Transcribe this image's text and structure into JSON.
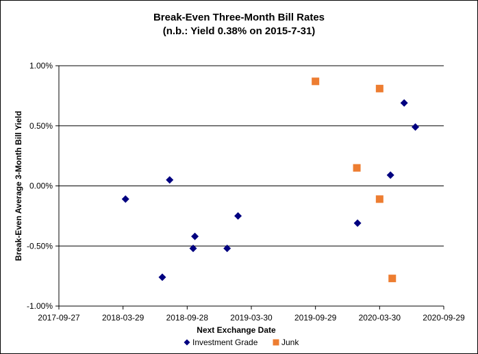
{
  "chart_data": {
    "type": "scatter",
    "title": "Break-Even Three-Month Bill Rates",
    "subtitle": "(n.b.: Yield 0.38% on 2015-7-31)",
    "xlabel": "Next Exchange Date",
    "ylabel": "Break-Even Average 3-Month  Bill Yield",
    "x_ticks": [
      "2017-09-27",
      "2018-03-29",
      "2018-09-28",
      "2019-03-30",
      "2019-09-29",
      "2020-03-30",
      "2020-09-29"
    ],
    "xlim": [
      "2017-09-27",
      "2020-09-29"
    ],
    "y_ticks": [
      "1.00%",
      "0.50%",
      "0.00%",
      "-0.50%",
      "-1.00%"
    ],
    "ylim": [
      -1.0,
      1.0
    ],
    "y_unit": "%",
    "grid": "horizontal major gridlines",
    "legend_position": "bottom",
    "series": [
      {
        "name": "Investment Grade",
        "marker": "diamond",
        "color": "#000080",
        "points": [
          {
            "x": "2018-04-05",
            "y": -0.11
          },
          {
            "x": "2018-07-19",
            "y": -0.76
          },
          {
            "x": "2018-08-09",
            "y": 0.05
          },
          {
            "x": "2018-10-15",
            "y": -0.52
          },
          {
            "x": "2018-10-20",
            "y": -0.42
          },
          {
            "x": "2019-01-20",
            "y": -0.52
          },
          {
            "x": "2019-02-20",
            "y": -0.25
          },
          {
            "x": "2020-01-27",
            "y": -0.31
          },
          {
            "x": "2020-04-30",
            "y": 0.09
          },
          {
            "x": "2020-06-08",
            "y": 0.69
          },
          {
            "x": "2020-07-10",
            "y": 0.49
          }
        ]
      },
      {
        "name": "Junk",
        "marker": "square",
        "color": "#ED7D31",
        "points": [
          {
            "x": "2019-09-29",
            "y": 0.87
          },
          {
            "x": "2020-01-25",
            "y": 0.15
          },
          {
            "x": "2020-03-30",
            "y": 0.81
          },
          {
            "x": "2020-03-30",
            "y": -0.11
          },
          {
            "x": "2020-05-05",
            "y": -0.77
          }
        ]
      }
    ]
  }
}
